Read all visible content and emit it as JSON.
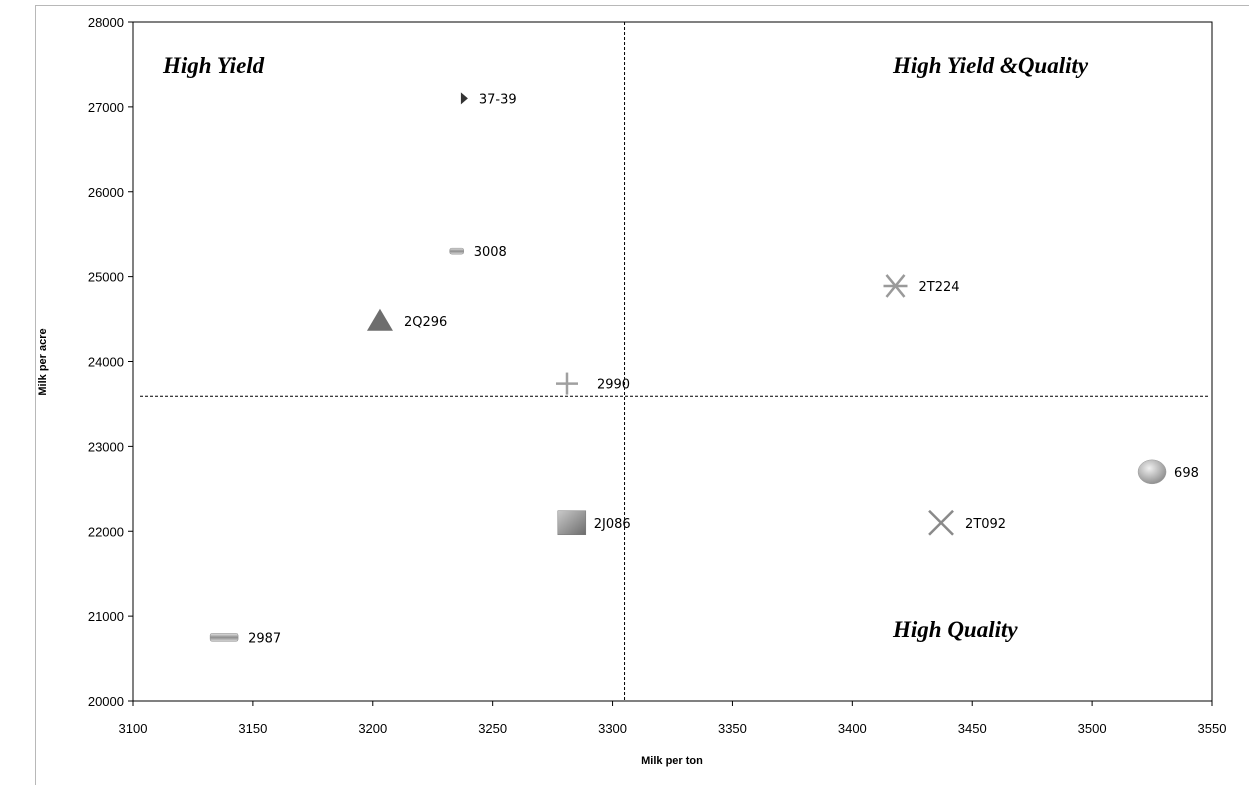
{
  "chart_data": {
    "type": "scatter",
    "title": "",
    "xlabel": "Milk per ton",
    "ylabel": "Milk per acre",
    "xlim": [
      3100,
      3550
    ],
    "ylim": [
      20000,
      28000
    ],
    "x_ticks": [
      3100,
      3150,
      3200,
      3250,
      3300,
      3350,
      3400,
      3450,
      3500,
      3550
    ],
    "y_ticks": [
      20000,
      21000,
      22000,
      23000,
      24000,
      25000,
      26000,
      27000,
      28000
    ],
    "grid": false,
    "reference_lines": {
      "x": 3305,
      "y": 23590
    },
    "quadrant_labels": {
      "top_left": "High Yield",
      "top_right": "High Yield &Quality",
      "bottom_right": "High Quality"
    },
    "points": [
      {
        "label": "37-39",
        "x": 3238,
        "y": 27100,
        "marker": "tiny-triangle-right",
        "color": "#333333"
      },
      {
        "label": "3008",
        "x": 3235,
        "y": 25300,
        "marker": "small-bar",
        "color": "#9a9a9a"
      },
      {
        "label": "2Q296",
        "x": 3203,
        "y": 24480,
        "marker": "triangle",
        "color": "#6e6e6e"
      },
      {
        "label": "2990",
        "x": 3281,
        "y": 23740,
        "marker": "plus",
        "color": "#a0a0a0"
      },
      {
        "label": "2T224",
        "x": 3418,
        "y": 24890,
        "marker": "asterisk",
        "color": "#9a9a9a"
      },
      {
        "label": "698",
        "x": 3525,
        "y": 22700,
        "marker": "circle",
        "color": "#b4b4b4"
      },
      {
        "label": "2T092",
        "x": 3437,
        "y": 22100,
        "marker": "x",
        "color": "#8a8a8a"
      },
      {
        "label": "2J086",
        "x": 3283,
        "y": 22100,
        "marker": "square",
        "color": "#888888"
      },
      {
        "label": "2987",
        "x": 3138,
        "y": 20750,
        "marker": "bar",
        "color": "#9a9a9a"
      }
    ]
  }
}
